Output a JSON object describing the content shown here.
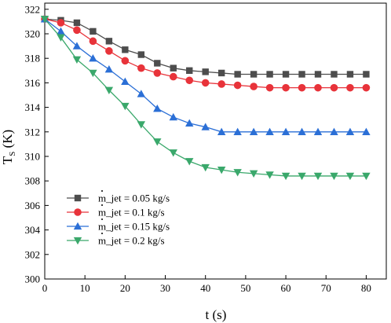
{
  "chart_data": {
    "type": "line",
    "xlabel": "t (s)",
    "ylabel_main": "T",
    "ylabel_sub": "S",
    "ylabel_unit": " (K)",
    "xlim": [
      0,
      85
    ],
    "ylim": [
      300,
      322.5
    ],
    "xticks": [
      0,
      10,
      20,
      30,
      40,
      50,
      60,
      70,
      80
    ],
    "yticks": [
      300,
      302,
      304,
      306,
      308,
      310,
      312,
      314,
      316,
      318,
      320,
      322
    ],
    "grid": false,
    "legend_position": "bottom-left",
    "x": [
      0,
      4,
      8,
      12,
      16,
      20,
      24,
      28,
      32,
      36,
      40,
      44,
      48,
      52,
      56,
      60,
      64,
      68,
      72,
      76,
      80
    ],
    "series": [
      {
        "name": "m_jet = 0.05 kg/s",
        "color": "#4d4d4d",
        "marker": "square",
        "values": [
          321.2,
          321.1,
          320.9,
          320.2,
          319.4,
          318.7,
          318.3,
          317.6,
          317.2,
          317.0,
          316.9,
          316.8,
          316.7,
          316.7,
          316.7,
          316.7,
          316.7,
          316.7,
          316.7,
          316.7,
          316.7
        ]
      },
      {
        "name": "m_jet = 0.1 kg/s",
        "color": "#e8333a",
        "marker": "circle",
        "values": [
          321.2,
          320.9,
          320.3,
          319.4,
          318.6,
          317.8,
          317.2,
          316.8,
          316.5,
          316.2,
          316.0,
          315.9,
          315.8,
          315.7,
          315.6,
          315.6,
          315.6,
          315.6,
          315.6,
          315.6,
          315.6
        ]
      },
      {
        "name": "m_jet = 0.15 kg/s",
        "color": "#2b6fd6",
        "marker": "triangle-up",
        "values": [
          321.2,
          320.2,
          319.0,
          318.0,
          317.1,
          316.1,
          315.1,
          313.9,
          313.2,
          312.7,
          312.4,
          312.0,
          312.0,
          312.0,
          312.0,
          312.0,
          312.0,
          312.0,
          312.0,
          312.0,
          312.0
        ]
      },
      {
        "name": "m_jet = 0.2 kg/s",
        "color": "#3aa86b",
        "marker": "triangle-down",
        "values": [
          321.2,
          319.7,
          317.9,
          316.8,
          315.4,
          314.1,
          312.6,
          311.2,
          310.3,
          309.6,
          309.1,
          308.9,
          308.7,
          308.6,
          308.5,
          308.4,
          308.4,
          308.4,
          308.4,
          308.4,
          308.4
        ]
      }
    ]
  }
}
